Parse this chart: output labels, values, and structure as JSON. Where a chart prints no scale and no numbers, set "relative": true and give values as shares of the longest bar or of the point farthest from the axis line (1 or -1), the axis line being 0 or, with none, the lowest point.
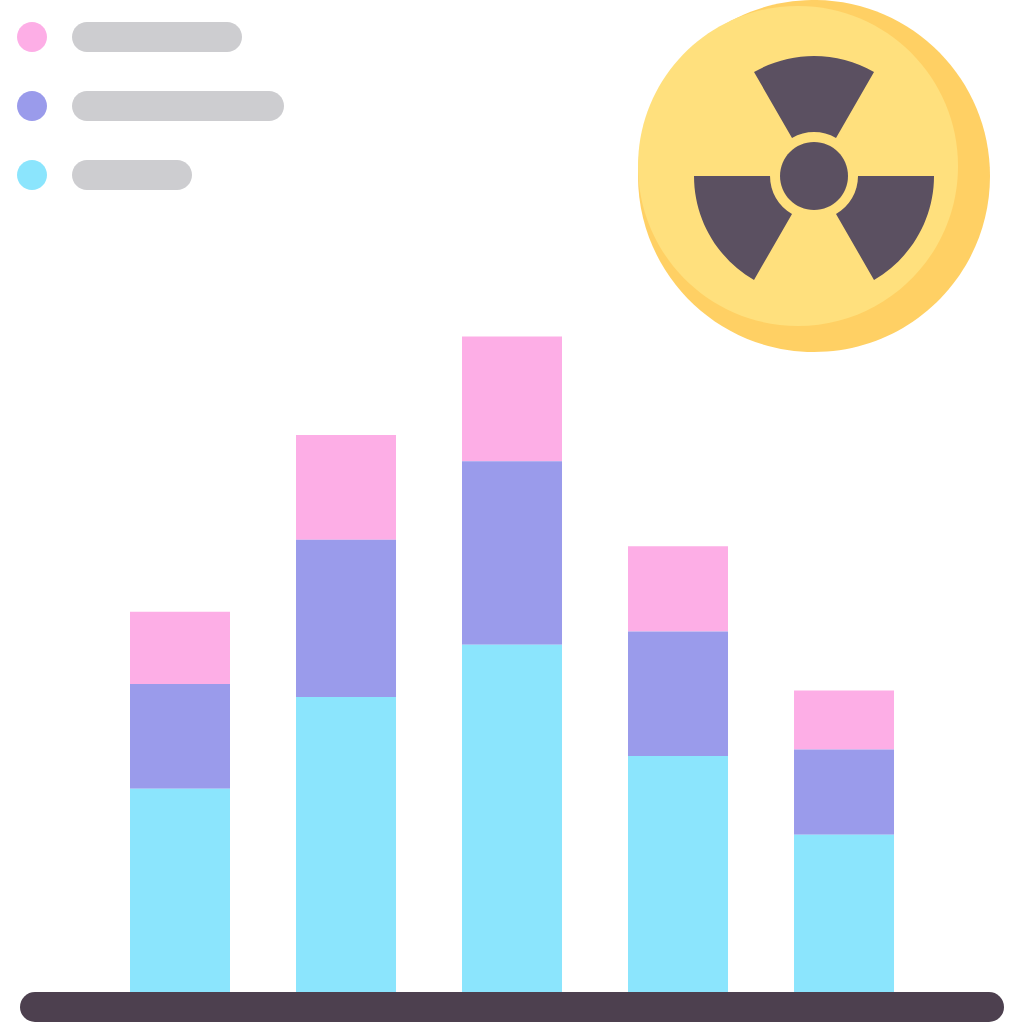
{
  "chart_data": {
    "type": "bar",
    "stacked": true,
    "relative": true,
    "categories": [
      null,
      null,
      null,
      null,
      null
    ],
    "series": [
      {
        "color": "#8be5fd",
        "values": [
          0.31,
          0.45,
          0.53,
          0.36,
          0.24
        ]
      },
      {
        "color": "#9a9beb",
        "values": [
          0.16,
          0.24,
          0.28,
          0.19,
          0.13
        ]
      },
      {
        "color": "#fdaee6",
        "values": [
          0.11,
          0.16,
          0.19,
          0.13,
          0.09
        ]
      }
    ]
  }
}
